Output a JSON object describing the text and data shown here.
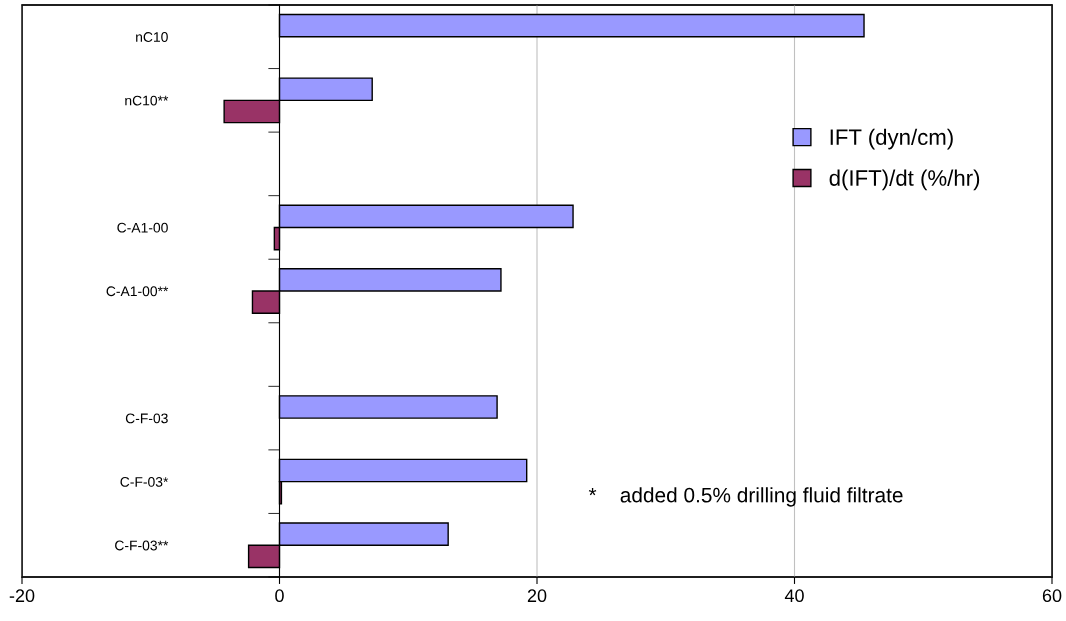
{
  "chart_data": {
    "type": "bar",
    "orientation": "horizontal",
    "categories": [
      "nC10",
      "nC10**",
      null,
      "C-A1-00",
      "C-A1-00**",
      null,
      "C-F-03",
      "C-F-03*",
      "C-F-03**"
    ],
    "series": [
      {
        "name": "IFT (dyn/cm)",
        "color": "#9999ff",
        "values": [
          45.4,
          7.2,
          null,
          22.8,
          17.2,
          null,
          16.9,
          19.2,
          13.1
        ]
      },
      {
        "name": "d(IFT)/dt (%/hr)",
        "color": "#993366",
        "values": [
          null,
          -4.3,
          null,
          -0.4,
          -2.1,
          null,
          null,
          0.15,
          -2.4
        ]
      }
    ],
    "xlim": [
      -20,
      60
    ],
    "xticks": [
      -20,
      0,
      20,
      40,
      60
    ],
    "grid": "x",
    "legend": "right",
    "annotations": [
      "*    added 0.5% drilling fluid filtrate"
    ]
  }
}
